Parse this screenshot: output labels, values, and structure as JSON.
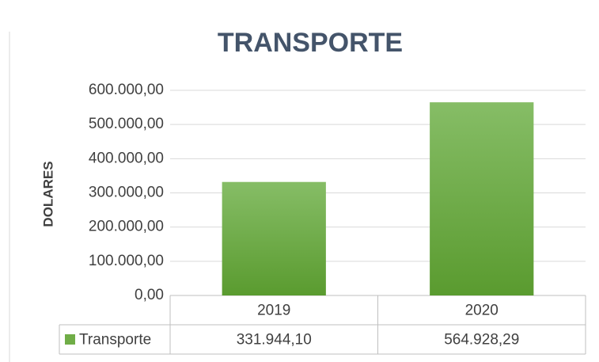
{
  "chart_data": {
    "type": "bar",
    "title": "TRANSPORTE",
    "y_label": "DOLARES",
    "categories": [
      "2019",
      "2020"
    ],
    "series": [
      {
        "name": "Transporte",
        "color": "#70ad47",
        "values": [
          331944.1,
          564928.29
        ],
        "value_labels": [
          "331.944,10",
          "564.928,29"
        ]
      }
    ],
    "ylim": [
      0,
      600000
    ],
    "yticks": [
      {
        "value": 0,
        "label": "0,00"
      },
      {
        "value": 100000,
        "label": "100.000,00"
      },
      {
        "value": 200000,
        "label": "200.000,00"
      },
      {
        "value": 300000,
        "label": "300.000,00"
      },
      {
        "value": 400000,
        "label": "400.000,00"
      },
      {
        "value": 500000,
        "label": "500.000,00"
      },
      {
        "value": 600000,
        "label": "600.000,00"
      }
    ],
    "grid": true,
    "data_table": true
  }
}
